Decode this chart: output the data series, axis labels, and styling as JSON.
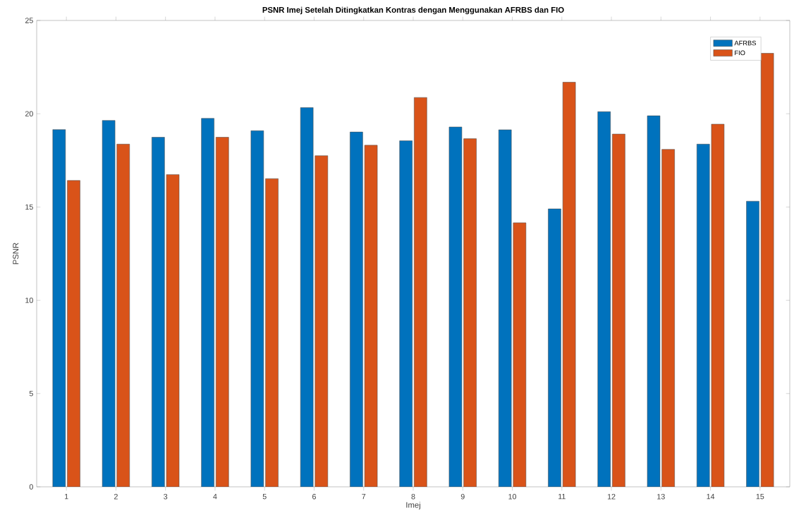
{
  "chart_data": {
    "type": "bar",
    "title": "PSNR Imej Setelah Ditingkatkan Kontras dengan Menggunakan AFRBS dan FIO",
    "xlabel": "Imej",
    "ylabel": "PSNR",
    "categories": [
      "1",
      "2",
      "3",
      "4",
      "5",
      "6",
      "7",
      "8",
      "9",
      "10",
      "11",
      "12",
      "13",
      "14",
      "15"
    ],
    "series": [
      {
        "name": "AFRBS",
        "color": "#0072bd",
        "values": [
          19.15,
          19.64,
          18.74,
          19.75,
          19.09,
          20.33,
          19.02,
          18.55,
          19.29,
          19.14,
          14.9,
          20.11,
          19.89,
          18.37,
          15.31
        ]
      },
      {
        "name": "FIO",
        "color": "#d95319",
        "values": [
          16.42,
          18.37,
          16.74,
          18.74,
          16.52,
          17.75,
          18.31,
          20.87,
          18.66,
          14.15,
          21.69,
          18.91,
          18.09,
          19.44,
          23.24
        ]
      }
    ],
    "ylim": [
      0,
      25
    ],
    "yticks": [
      0,
      5,
      10,
      15,
      20,
      25
    ],
    "legend": "top right"
  }
}
